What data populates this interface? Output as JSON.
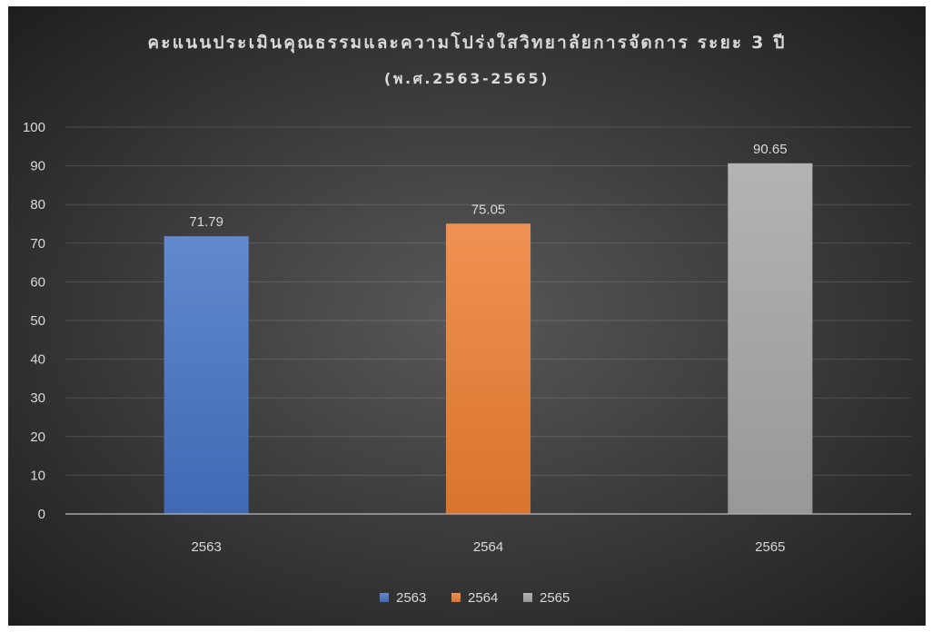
{
  "chart_data": {
    "type": "bar",
    "title": "คะแนนประเมินคุณธรรมและความโปร่งใสวิทยาลัยการจัดการ ระยะ 3 ปี",
    "subtitle": "(พ.ศ.2563-2565)",
    "categories": [
      "2563",
      "2564",
      "2565"
    ],
    "values": [
      71.79,
      75.05,
      90.65
    ],
    "colors": [
      "#4472C4",
      "#ED7D31",
      "#A5A5A5"
    ],
    "ylim": [
      0,
      100
    ],
    "yticks": [
      0,
      10,
      20,
      30,
      40,
      50,
      60,
      70,
      80,
      90,
      100
    ],
    "grid": true,
    "data_labels": true,
    "legend": {
      "position": "bottom",
      "entries": [
        "2563",
        "2564",
        "2565"
      ]
    }
  },
  "theme": {
    "text_color": "#D9D9D9",
    "background_center": "#585858",
    "background_edge": "#1E1E1E"
  }
}
